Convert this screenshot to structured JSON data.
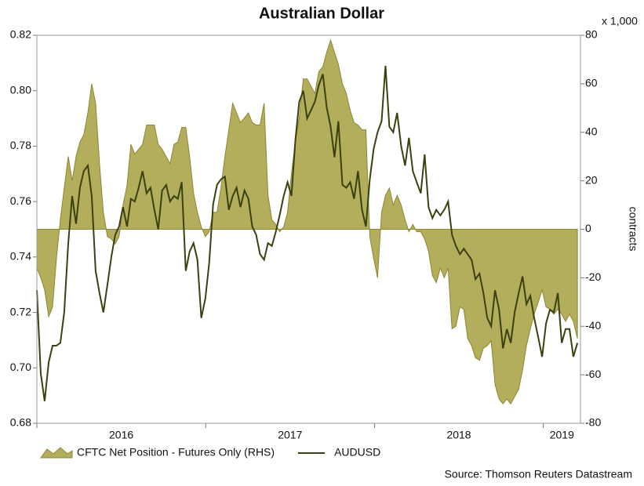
{
  "chart_data": {
    "type": "line",
    "title": "Australian Dollar",
    "y2_unit": "x 1,000",
    "y2_label": "contracts",
    "source": "Source: Thomson Reuters Datastream",
    "xlim": [
      2016,
      2019.22
    ],
    "xticks": [
      2016,
      2017,
      2018,
      2019
    ],
    "ylim": [
      0.68,
      0.82
    ],
    "yticks": [
      0.68,
      0.7,
      0.72,
      0.74,
      0.76,
      0.78,
      0.8,
      0.82
    ],
    "y2lim": [
      -80,
      80
    ],
    "y2ticks": [
      -80,
      -60,
      -40,
      -20,
      0,
      20,
      40,
      60,
      80
    ],
    "grid": false,
    "legend": "bottom",
    "x": [
      2016.0,
      2016.023,
      2016.046,
      2016.07,
      2016.093,
      2016.116,
      2016.139,
      2016.162,
      2016.186,
      2016.209,
      2016.232,
      2016.255,
      2016.278,
      2016.302,
      2016.325,
      2016.348,
      2016.371,
      2016.394,
      2016.418,
      2016.441,
      2016.464,
      2016.487,
      2016.51,
      2016.534,
      2016.557,
      2016.58,
      2016.603,
      2016.626,
      2016.65,
      2016.673,
      2016.696,
      2016.719,
      2016.742,
      2016.766,
      2016.789,
      2016.812,
      2016.835,
      2016.858,
      2016.882,
      2016.905,
      2016.928,
      2016.951,
      2016.974,
      2016.998,
      2017.021,
      2017.044,
      2017.067,
      2017.09,
      2017.114,
      2017.137,
      2017.16,
      2017.183,
      2017.206,
      2017.23,
      2017.253,
      2017.276,
      2017.299,
      2017.322,
      2017.346,
      2017.369,
      2017.392,
      2017.415,
      2017.438,
      2017.462,
      2017.485,
      2017.508,
      2017.531,
      2017.554,
      2017.578,
      2017.601,
      2017.624,
      2017.647,
      2017.67,
      2017.694,
      2017.717,
      2017.74,
      2017.763,
      2017.786,
      2017.81,
      2017.833,
      2017.856,
      2017.879,
      2017.902,
      2017.926,
      2017.949,
      2017.972,
      2017.995,
      2018.018,
      2018.042,
      2018.065,
      2018.088,
      2018.111,
      2018.134,
      2018.158,
      2018.181,
      2018.204,
      2018.227,
      2018.25,
      2018.274,
      2018.297,
      2018.32,
      2018.343,
      2018.366,
      2018.39,
      2018.413,
      2018.436,
      2018.459,
      2018.482,
      2018.506,
      2018.529,
      2018.552,
      2018.575,
      2018.598,
      2018.622,
      2018.645,
      2018.668,
      2018.691,
      2018.714,
      2018.738,
      2018.761,
      2018.784,
      2018.807,
      2018.83,
      2018.854,
      2018.877,
      2018.9,
      2018.923,
      2018.946,
      2018.97,
      2018.993,
      2019.016,
      2019.039,
      2019.062,
      2019.086,
      2019.109,
      2019.132,
      2019.155,
      2019.178,
      2019.202
    ],
    "series": [
      {
        "name": "CFTC Net Position - Futures Only (RHS)",
        "kind": "area",
        "axis": "y2",
        "color": "#b3ae5c",
        "edge": "#8c8733",
        "values": [
          -16,
          -20,
          -25,
          -36,
          -32,
          -12,
          4,
          17,
          30,
          20,
          30,
          36,
          39,
          48,
          60,
          52,
          27,
          7,
          -3,
          -4,
          -6,
          -3,
          10,
          18,
          35,
          31,
          33,
          35,
          43,
          43,
          43,
          35,
          33,
          30,
          27,
          35,
          36,
          42,
          42,
          30,
          15,
          7,
          1,
          -3,
          -1,
          7,
          7,
          17,
          30,
          41,
          52,
          48,
          44,
          46,
          48,
          44,
          43,
          43,
          52,
          14,
          4,
          2,
          -1,
          1,
          7,
          23,
          36,
          46,
          62,
          62,
          59,
          56,
          65,
          67,
          73,
          78,
          73,
          68,
          60,
          56,
          49,
          44,
          43,
          41,
          41,
          -3,
          -12,
          -20,
          7,
          14,
          17,
          10,
          14,
          10,
          4,
          -1,
          2,
          -1,
          -1,
          -4,
          -9,
          -19,
          -22,
          -16,
          -20,
          -16,
          -41,
          -40,
          -32,
          -33,
          -45,
          -48,
          -53,
          -54,
          -49,
          -48,
          -46,
          -64,
          -70,
          -72,
          -70,
          -72,
          -69,
          -66,
          -58,
          -48,
          -41,
          -35,
          -30,
          -25,
          -32,
          -33,
          -35,
          -33,
          -35,
          -38,
          -35,
          -38,
          -45
        ]
      },
      {
        "name": "AUDUSD",
        "kind": "line",
        "axis": "y",
        "color": "#3b400f",
        "values": [
          0.728,
          0.698,
          0.688,
          0.702,
          0.708,
          0.708,
          0.709,
          0.72,
          0.745,
          0.762,
          0.752,
          0.765,
          0.771,
          0.773,
          0.762,
          0.735,
          0.727,
          0.72,
          0.73,
          0.74,
          0.748,
          0.751,
          0.758,
          0.751,
          0.761,
          0.76,
          0.765,
          0.771,
          0.763,
          0.765,
          0.757,
          0.75,
          0.764,
          0.766,
          0.76,
          0.762,
          0.761,
          0.767,
          0.735,
          0.742,
          0.745,
          0.739,
          0.718,
          0.725,
          0.738,
          0.759,
          0.766,
          0.768,
          0.769,
          0.757,
          0.762,
          0.765,
          0.758,
          0.764,
          0.761,
          0.751,
          0.748,
          0.741,
          0.739,
          0.745,
          0.744,
          0.749,
          0.755,
          0.762,
          0.767,
          0.762,
          0.782,
          0.796,
          0.8,
          0.79,
          0.793,
          0.796,
          0.802,
          0.806,
          0.794,
          0.787,
          0.776,
          0.789,
          0.766,
          0.765,
          0.767,
          0.761,
          0.771,
          0.757,
          0.751,
          0.768,
          0.779,
          0.785,
          0.789,
          0.809,
          0.787,
          0.785,
          0.792,
          0.78,
          0.773,
          0.783,
          0.771,
          0.767,
          0.763,
          0.777,
          0.758,
          0.754,
          0.757,
          0.755,
          0.757,
          0.76,
          0.748,
          0.744,
          0.741,
          0.743,
          0.741,
          0.739,
          0.732,
          0.734,
          0.727,
          0.718,
          0.715,
          0.728,
          0.721,
          0.707,
          0.714,
          0.709,
          0.72,
          0.727,
          0.733,
          0.723,
          0.726,
          0.718,
          0.711,
          0.704,
          0.716,
          0.721,
          0.72,
          0.727,
          0.709,
          0.714,
          0.714,
          0.704,
          0.709
        ]
      }
    ]
  }
}
